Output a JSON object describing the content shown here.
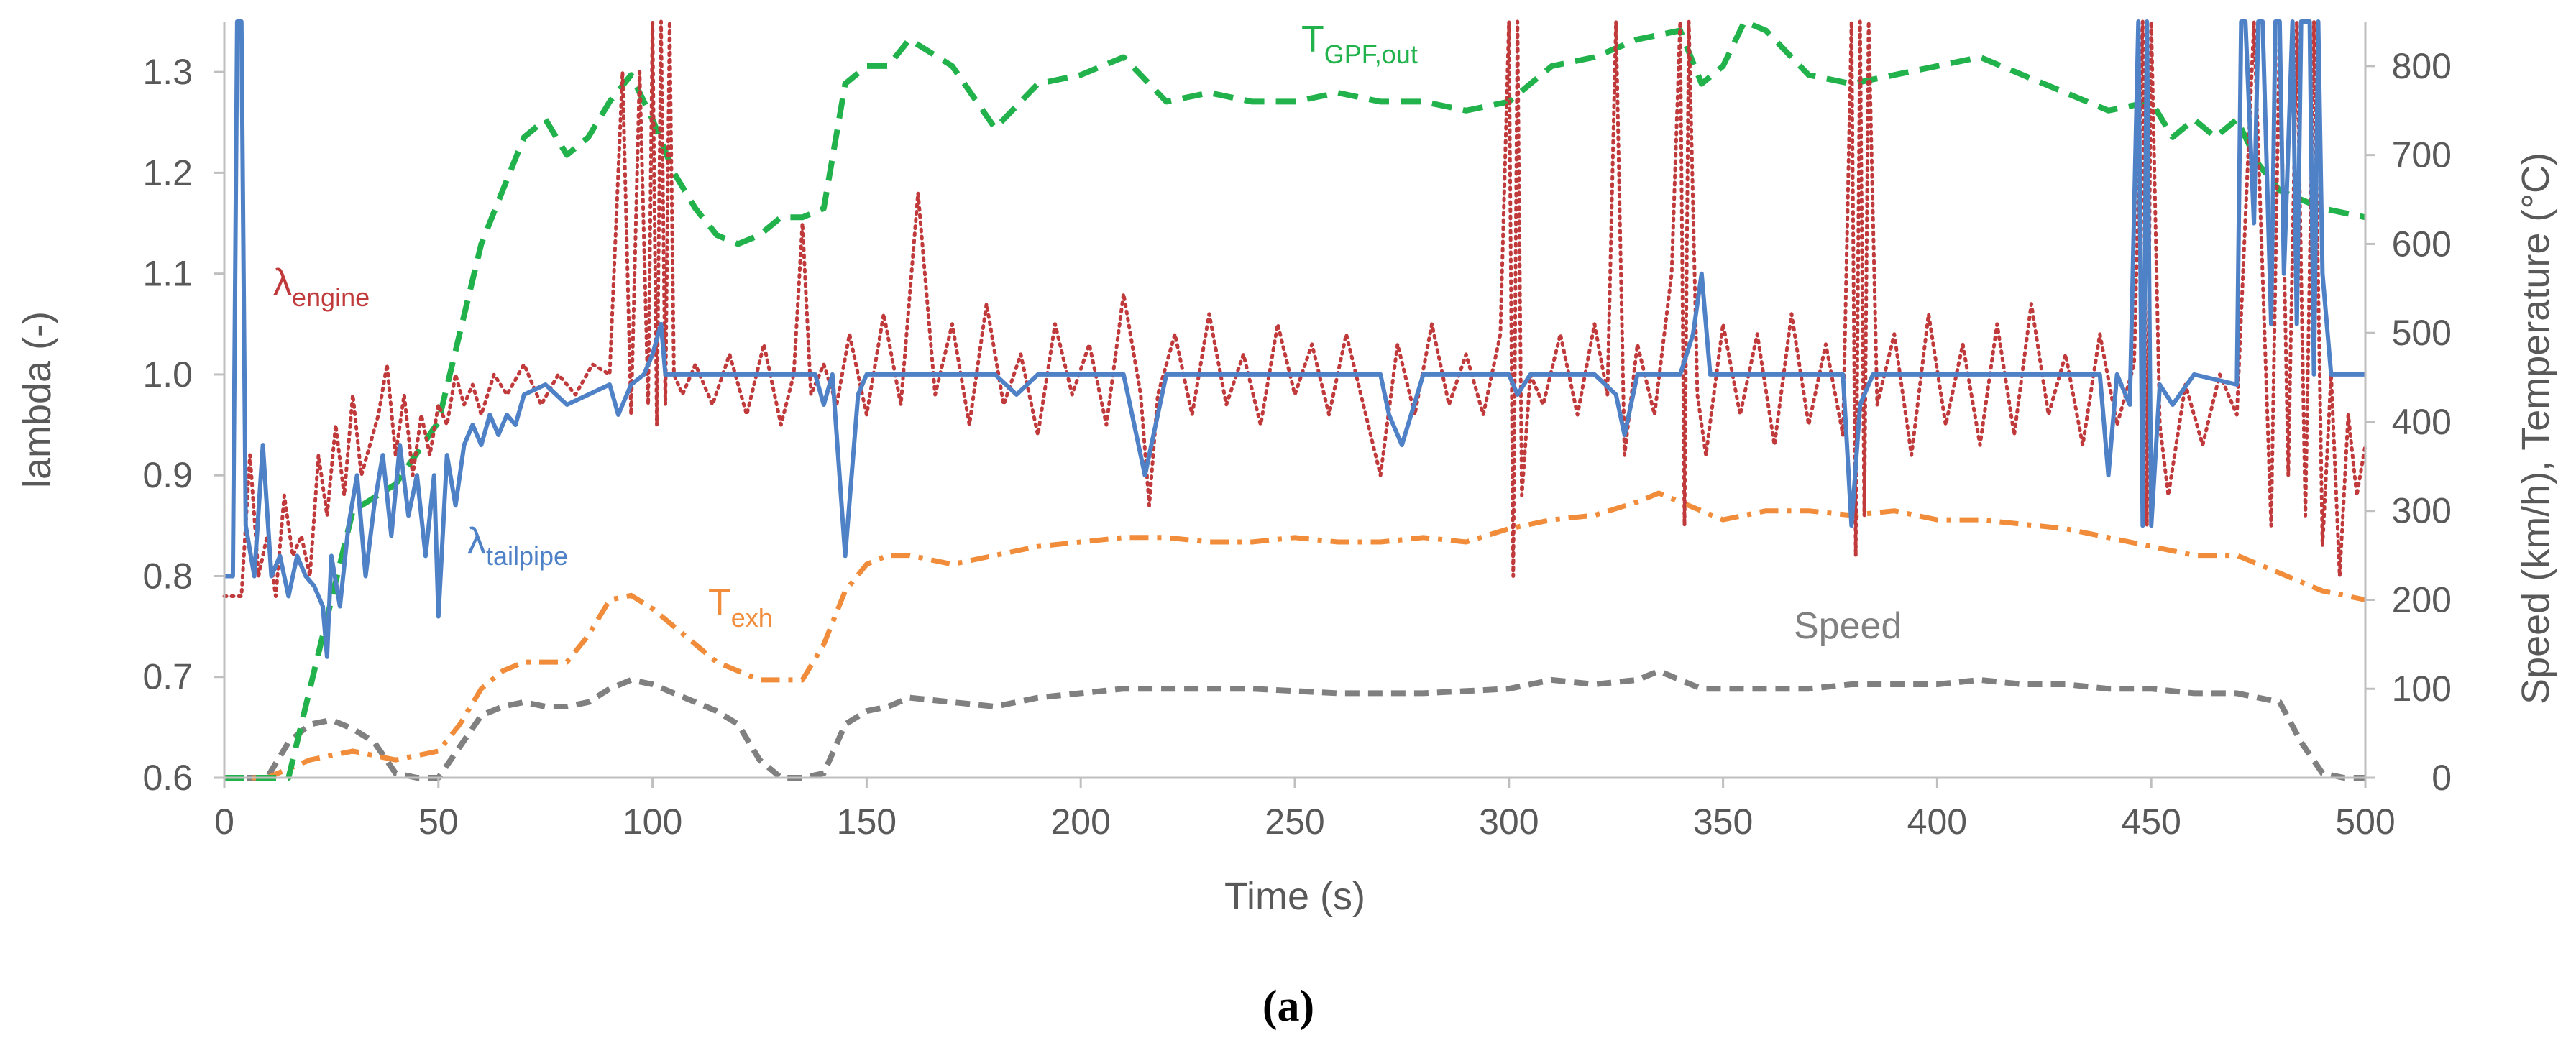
{
  "caption": "(a)",
  "chart_data": {
    "type": "line",
    "xlabel": "Time (s)",
    "ylabel_left": "lambda (-)",
    "ylabel_right": "Speed (km/h), Temperature (°C)",
    "xlim": [
      0,
      500
    ],
    "ylim_left": [
      0.6,
      1.35
    ],
    "ylim_right": [
      0,
      850
    ],
    "x_ticks": [
      0,
      50,
      100,
      150,
      200,
      250,
      300,
      350,
      400,
      450,
      500
    ],
    "y_left_ticks": [
      0.6,
      0.7,
      0.8,
      0.9,
      1.0,
      1.1,
      1.2,
      1.3
    ],
    "y_left_tick_labels": [
      "0.6",
      "0.7",
      "0.8",
      "0.9",
      "1.0",
      "1.1",
      "1.2",
      "1.3"
    ],
    "y_right_ticks": [
      0,
      100,
      200,
      300,
      400,
      500,
      600,
      700,
      800
    ],
    "grid": false,
    "colors": {
      "lambda_engine": "#c0393b",
      "lambda_tailpipe": "#4f81c7",
      "T_GPF_out": "#22b24c",
      "T_exh": "#f08c3a",
      "speed": "#808080",
      "axis": "#bfbfbf",
      "text": "#595959"
    },
    "series": [
      {
        "name": "T_GPF_out",
        "axis": "right",
        "style": "dashed",
        "label_main": "T",
        "label_sub": "GPF,out",
        "x": [
          0,
          15,
          20,
          25,
          30,
          40,
          50,
          55,
          60,
          65,
          70,
          75,
          80,
          85,
          90,
          95,
          100,
          105,
          110,
          115,
          120,
          125,
          130,
          135,
          140,
          145,
          150,
          155,
          160,
          170,
          180,
          190,
          200,
          210,
          220,
          230,
          240,
          250,
          260,
          270,
          280,
          290,
          300,
          310,
          320,
          330,
          340,
          345,
          350,
          355,
          360,
          370,
          380,
          390,
          400,
          410,
          420,
          430,
          440,
          450,
          455,
          460,
          465,
          470,
          475,
          480,
          490,
          500
        ],
        "values": [
          0,
          0,
          100,
          200,
          300,
          330,
          400,
          500,
          600,
          660,
          720,
          740,
          700,
          720,
          760,
          790,
          740,
          680,
          640,
          610,
          600,
          610,
          630,
          630,
          640,
          780,
          800,
          800,
          830,
          800,
          730,
          780,
          790,
          810,
          760,
          770,
          760,
          760,
          770,
          760,
          760,
          750,
          760,
          800,
          810,
          830,
          840,
          780,
          800,
          850,
          840,
          790,
          780,
          790,
          800,
          810,
          790,
          770,
          750,
          760,
          720,
          740,
          720,
          740,
          690,
          660,
          640,
          630
        ]
      },
      {
        "name": "T_exh",
        "axis": "right",
        "style": "dashdot",
        "label_main": "T",
        "label_sub": "exh",
        "x": [
          0,
          10,
          20,
          30,
          40,
          50,
          55,
          60,
          65,
          70,
          80,
          85,
          90,
          95,
          100,
          105,
          110,
          115,
          120,
          125,
          130,
          135,
          140,
          145,
          150,
          155,
          160,
          170,
          180,
          190,
          200,
          210,
          220,
          230,
          240,
          250,
          260,
          270,
          280,
          290,
          300,
          310,
          320,
          330,
          335,
          340,
          350,
          360,
          370,
          380,
          390,
          400,
          410,
          420,
          430,
          440,
          450,
          460,
          470,
          480,
          490,
          500
        ],
        "values": [
          0,
          0,
          20,
          30,
          20,
          30,
          60,
          100,
          120,
          130,
          130,
          160,
          200,
          205,
          190,
          170,
          150,
          130,
          120,
          110,
          110,
          110,
          150,
          210,
          240,
          250,
          250,
          240,
          250,
          260,
          265,
          270,
          270,
          265,
          265,
          270,
          265,
          265,
          270,
          265,
          280,
          290,
          295,
          310,
          320,
          310,
          290,
          300,
          300,
          295,
          300,
          290,
          290,
          285,
          280,
          270,
          260,
          250,
          250,
          230,
          210,
          200
        ]
      },
      {
        "name": "Speed",
        "axis": "right",
        "style": "dashed",
        "label_main": "Speed",
        "label_sub": "",
        "x": [
          0,
          10,
          15,
          20,
          25,
          30,
          35,
          40,
          45,
          50,
          55,
          60,
          65,
          70,
          75,
          80,
          85,
          90,
          95,
          100,
          105,
          110,
          115,
          120,
          125,
          130,
          135,
          140,
          145,
          150,
          155,
          160,
          170,
          180,
          190,
          200,
          210,
          220,
          240,
          260,
          280,
          300,
          310,
          320,
          330,
          335,
          340,
          345,
          350,
          360,
          370,
          380,
          390,
          400,
          410,
          420,
          430,
          440,
          450,
          460,
          470,
          480,
          485,
          490,
          495,
          500
        ],
        "values": [
          0,
          0,
          40,
          60,
          65,
          55,
          40,
          5,
          0,
          0,
          35,
          70,
          80,
          85,
          80,
          80,
          85,
          100,
          110,
          105,
          95,
          85,
          75,
          60,
          20,
          0,
          0,
          5,
          60,
          75,
          80,
          90,
          85,
          80,
          90,
          95,
          100,
          100,
          100,
          95,
          95,
          100,
          110,
          105,
          110,
          120,
          110,
          100,
          100,
          100,
          100,
          105,
          105,
          105,
          110,
          105,
          105,
          100,
          100,
          95,
          95,
          85,
          40,
          5,
          0,
          0
        ]
      },
      {
        "name": "lambda_tailpipe",
        "axis": "left",
        "style": "solid",
        "label_main": "λ",
        "label_sub": "tailpipe",
        "x": [
          0,
          2,
          3,
          4,
          5,
          7,
          9,
          11,
          13,
          15,
          17,
          19,
          21,
          23,
          24,
          25,
          27,
          29,
          31,
          33,
          35,
          37,
          39,
          41,
          43,
          45,
          47,
          49,
          50,
          52,
          54,
          56,
          58,
          60,
          62,
          64,
          66,
          68,
          70,
          75,
          80,
          85,
          90,
          92,
          95,
          98,
          100,
          102,
          103,
          105,
          110,
          120,
          130,
          138,
          140,
          142,
          145,
          148,
          150,
          160,
          170,
          180,
          185,
          190,
          200,
          210,
          215,
          220,
          230,
          240,
          250,
          260,
          270,
          272,
          275,
          280,
          290,
          300,
          302,
          305,
          310,
          320,
          325,
          327,
          330,
          340,
          343,
          345,
          347,
          350,
          360,
          370,
          378,
          380,
          382,
          385,
          390,
          400,
          410,
          420,
          430,
          438,
          440,
          442,
          445,
          447,
          448,
          449,
          450,
          452,
          455,
          460,
          470,
          471,
          472,
          474,
          475,
          476,
          478,
          479,
          480,
          481,
          483,
          484,
          485,
          487,
          488,
          489,
          490,
          492,
          495,
          500
        ],
        "values": [
          0.8,
          0.8,
          1.35,
          1.35,
          0.85,
          0.8,
          0.93,
          0.8,
          0.82,
          0.78,
          0.82,
          0.8,
          0.79,
          0.77,
          0.72,
          0.82,
          0.77,
          0.85,
          0.9,
          0.8,
          0.87,
          0.92,
          0.84,
          0.93,
          0.86,
          0.9,
          0.82,
          0.9,
          0.76,
          0.92,
          0.87,
          0.93,
          0.95,
          0.93,
          0.96,
          0.94,
          0.96,
          0.95,
          0.98,
          0.99,
          0.97,
          0.98,
          0.99,
          0.96,
          0.99,
          1.0,
          1.02,
          1.05,
          1.0,
          1.0,
          1.0,
          1.0,
          1.0,
          1.0,
          0.97,
          1.0,
          0.82,
          0.98,
          1.0,
          1.0,
          1.0,
          1.0,
          0.98,
          1.0,
          1.0,
          1.0,
          0.9,
          1.0,
          1.0,
          1.0,
          1.0,
          1.0,
          1.0,
          0.96,
          0.93,
          1.0,
          1.0,
          1.0,
          0.98,
          1.0,
          1.0,
          1.0,
          0.98,
          0.94,
          1.0,
          1.0,
          1.04,
          1.1,
          1.0,
          1.0,
          1.0,
          1.0,
          1.0,
          0.85,
          0.97,
          1.0,
          1.0,
          1.0,
          1.0,
          1.0,
          1.0,
          1.0,
          0.9,
          1.0,
          0.97,
          1.35,
          0.85,
          1.35,
          0.85,
          0.99,
          0.97,
          1.0,
          0.99,
          1.35,
          1.35,
          1.15,
          1.35,
          1.35,
          1.05,
          1.35,
          1.35,
          1.1,
          1.35,
          1.05,
          1.35,
          1.35,
          1.0,
          1.35,
          1.1,
          1.0,
          1.0,
          1.0
        ]
      },
      {
        "name": "lambda_engine",
        "axis": "left",
        "style": "dotted",
        "label_main": "λ",
        "label_sub": "engine",
        "x": [
          0,
          4,
          6,
          8,
          10,
          12,
          14,
          16,
          18,
          20,
          22,
          24,
          26,
          28,
          30,
          32,
          34,
          36,
          38,
          40,
          42,
          44,
          46,
          48,
          50,
          52,
          54,
          56,
          58,
          60,
          63,
          66,
          70,
          74,
          78,
          82,
          86,
          90,
          93,
          95,
          97,
          99,
          100,
          101,
          102,
          103,
          104,
          105,
          107,
          110,
          114,
          118,
          122,
          126,
          130,
          133,
          135,
          137,
          140,
          143,
          146,
          150,
          154,
          158,
          162,
          166,
          170,
          174,
          178,
          182,
          186,
          190,
          194,
          198,
          202,
          206,
          210,
          214,
          216,
          218,
          222,
          226,
          230,
          234,
          238,
          242,
          246,
          250,
          254,
          258,
          262,
          266,
          270,
          274,
          278,
          282,
          286,
          290,
          294,
          298,
          300,
          301,
          302,
          303,
          305,
          308,
          312,
          316,
          320,
          323,
          325,
          327,
          330,
          334,
          338,
          340,
          341,
          342,
          344,
          346,
          350,
          354,
          358,
          362,
          366,
          370,
          374,
          378,
          380,
          381,
          382,
          383,
          384,
          386,
          390,
          394,
          398,
          402,
          406,
          410,
          414,
          418,
          422,
          426,
          430,
          434,
          438,
          442,
          446,
          448,
          449,
          450,
          452,
          454,
          458,
          462,
          466,
          470,
          474,
          478,
          480,
          482,
          484,
          486,
          488,
          490,
          492,
          494,
          496,
          498,
          500
        ],
        "values": [
          0.78,
          0.78,
          0.92,
          0.8,
          0.84,
          0.78,
          0.88,
          0.82,
          0.84,
          0.8,
          0.92,
          0.86,
          0.95,
          0.88,
          0.98,
          0.9,
          0.93,
          0.96,
          1.01,
          0.92,
          0.98,
          0.9,
          0.96,
          0.92,
          0.97,
          0.95,
          1.0,
          0.97,
          0.99,
          0.96,
          1.0,
          0.98,
          1.01,
          0.97,
          1.0,
          0.98,
          1.01,
          1.0,
          1.3,
          0.96,
          1.3,
          0.97,
          1.35,
          0.95,
          1.35,
          0.97,
          1.35,
          1.0,
          0.98,
          1.01,
          0.97,
          1.02,
          0.96,
          1.03,
          0.95,
          1.0,
          1.15,
          0.98,
          1.01,
          0.97,
          1.04,
          0.96,
          1.06,
          0.97,
          1.18,
          0.98,
          1.05,
          0.95,
          1.07,
          0.97,
          1.02,
          0.94,
          1.05,
          0.98,
          1.03,
          0.95,
          1.08,
          0.98,
          0.87,
          0.98,
          1.04,
          0.96,
          1.06,
          0.97,
          1.02,
          0.95,
          1.05,
          0.98,
          1.03,
          0.96,
          1.04,
          0.97,
          0.9,
          1.03,
          0.96,
          1.05,
          0.97,
          1.02,
          0.96,
          1.04,
          1.35,
          0.8,
          1.35,
          0.88,
          1.0,
          0.97,
          1.04,
          0.96,
          1.05,
          0.98,
          1.35,
          0.92,
          1.03,
          0.96,
          1.1,
          1.35,
          0.85,
          1.35,
          0.98,
          0.92,
          1.05,
          0.96,
          1.04,
          0.93,
          1.06,
          0.95,
          1.03,
          0.94,
          1.35,
          0.82,
          1.35,
          0.86,
          1.35,
          0.97,
          1.04,
          0.92,
          1.06,
          0.95,
          1.03,
          0.93,
          1.05,
          0.94,
          1.07,
          0.96,
          1.02,
          0.93,
          1.04,
          0.95,
          1.01,
          1.35,
          0.85,
          1.35,
          0.95,
          0.88,
          0.99,
          0.93,
          1.0,
          0.96,
          1.35,
          0.85,
          1.35,
          0.9,
          1.35,
          0.86,
          1.35,
          0.83,
          1.0,
          0.8,
          0.96,
          0.88,
          0.93
        ]
      }
    ]
  }
}
